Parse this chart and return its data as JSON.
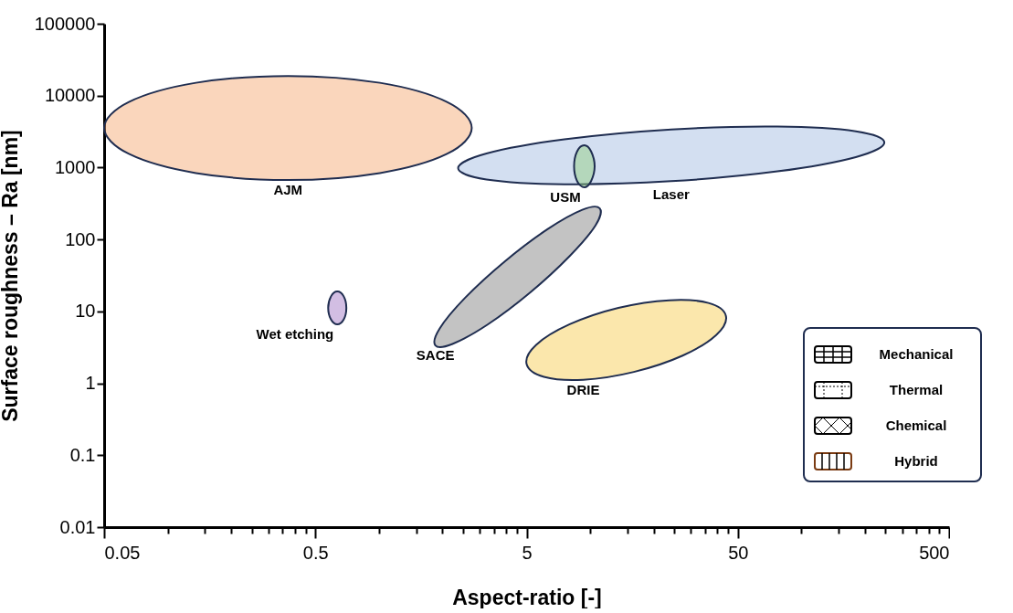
{
  "chart_data": {
    "type": "area",
    "xlabel": "Aspect-ratio [-]",
    "ylabel": "Surface roughness – Ra [nm]",
    "log": "xy",
    "grid": false,
    "marker": "none",
    "xlim": [
      0.05,
      500
    ],
    "ylim": [
      0.01,
      100000
    ],
    "xticks": [
      0.05,
      {
        "value": 0.1,
        "label": null
      },
      {
        "value": 0.15,
        "label": null
      },
      {
        "value": 0.2,
        "label": null
      },
      {
        "value": 0.25,
        "label": null
      },
      {
        "value": 0.3,
        "label": null
      },
      {
        "value": 0.35,
        "label": null
      },
      {
        "value": 0.4,
        "label": null
      },
      {
        "value": 0.45,
        "label": null
      },
      0.5,
      {
        "value": 1,
        "label": null
      },
      {
        "value": 1.5,
        "label": null
      },
      {
        "value": 2,
        "label": null
      },
      {
        "value": 2.5,
        "label": null
      },
      {
        "value": 3,
        "label": null
      },
      {
        "value": 3.5,
        "label": null
      },
      {
        "value": 4,
        "label": null
      },
      {
        "value": 4.5,
        "label": null
      },
      5,
      {
        "value": 10,
        "label": null
      },
      {
        "value": 15,
        "label": null
      },
      {
        "value": 20,
        "label": null
      },
      {
        "value": 25,
        "label": null
      },
      {
        "value": 30,
        "label": null
      },
      {
        "value": 35,
        "label": null
      },
      {
        "value": 40,
        "label": null
      },
      {
        "value": 45,
        "label": null
      },
      50,
      {
        "value": 100,
        "label": null
      },
      {
        "value": 150,
        "label": null
      },
      {
        "value": 200,
        "label": null
      },
      {
        "value": 250,
        "label": null
      },
      {
        "value": 300,
        "label": null
      },
      {
        "value": 350,
        "label": null
      },
      {
        "value": 400,
        "label": null
      },
      {
        "value": 450,
        "label": null
      },
      500
    ],
    "yticks": [
      0.01,
      0.1,
      1,
      10,
      100,
      1000,
      10000,
      100000
    ],
    "series": [
      {
        "name": "AJM",
        "color": "#f4a46b",
        "x": [
          2.75,
          2.1,
          1.01,
          0.371,
          0.136,
          0.0655,
          0.05,
          0.0655,
          0.136,
          0.371,
          1.01,
          2.1
        ],
        "values": [
          3560,
          8180,
          15100,
          18800,
          15100,
          8180,
          3560,
          1550,
          840,
          671,
          840,
          1550
        ]
      },
      {
        "name": "Laser",
        "color": "#9db7e0",
        "x": [
          247,
          181,
          77,
          24.2,
          7.55,
          3.23,
          2.37,
          3.23,
          7.55,
          24.2,
          77,
          181
        ],
        "values": [
          2230,
          3200,
          3720,
          3390,
          2470,
          1570,
          980,
          684,
          587,
          646,
          885,
          1400
        ]
      },
      {
        "name": "USM",
        "color": "#8fcf7a",
        "x": [
          10.5,
          10.1,
          9.38,
          8.67,
          8.39,
          8.67,
          9.38,
          10.1
        ],
        "values": [
          1040,
          1680,
          2040,
          1680,
          1040,
          649,
          532,
          649
        ]
      },
      {
        "name": "Wet etching",
        "color": "#9b6fc0",
        "x": [
          0.701,
          0.681,
          0.635,
          0.593,
          0.575,
          0.593,
          0.635,
          0.681
        ],
        "values": [
          11.2,
          16.2,
          18.9,
          16.2,
          11.2,
          7.69,
          6.59,
          7.69
        ]
      },
      {
        "name": "SACE",
        "color": "#7a7a7a",
        "x": [
          11.1,
          10.6,
          8.0,
          5.21,
          3.27,
          2.23,
          1.85,
          1.94,
          2.56,
          3.94,
          6.28,
          9.18
        ],
        "values": [
          271,
          157,
          58.9,
          18.4,
          6.56,
          3.53,
          3.37,
          5.81,
          15.5,
          49.5,
          139,
          259
        ]
      },
      {
        "name": "DRIE",
        "color": "#f7c948",
        "x": [
          43.9,
          39.5,
          27.4,
          16.1,
          9.27,
          6.04,
          5.0,
          5.55,
          8.0,
          13.6,
          23.7,
          36.3
        ],
        "values": [
          8.69,
          4.7,
          2.43,
          1.44,
          1.12,
          1.23,
          1.85,
          3.43,
          6.62,
          11.2,
          14.3,
          13.1
        ]
      }
    ],
    "annotations": [
      "Mechanical",
      "Thermal",
      "Chemical",
      "Hybrid"
    ]
  }
}
